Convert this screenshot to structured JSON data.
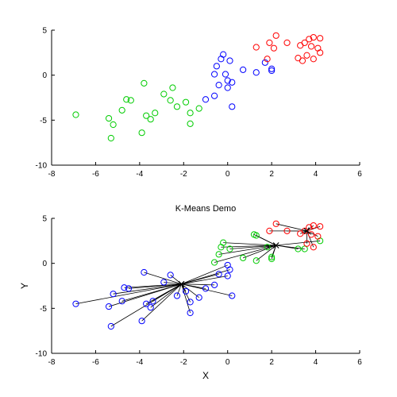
{
  "chart_data": [
    {
      "type": "scatter",
      "title": "",
      "xlabel": "",
      "ylabel": "",
      "xlim": [
        -8,
        6
      ],
      "ylim": [
        -10,
        5
      ],
      "xticks": [
        -8,
        -6,
        -4,
        -2,
        0,
        2,
        4,
        6
      ],
      "yticks": [
        -10,
        -5,
        0,
        5
      ],
      "grid": false,
      "series": [
        {
          "color": "#00cc00",
          "points": [
            [
              -6.9,
              -4.4
            ],
            [
              -5.4,
              -4.8
            ],
            [
              -5.2,
              -5.5
            ],
            [
              -5.3,
              -7.0
            ],
            [
              -4.8,
              -3.9
            ],
            [
              -4.6,
              -2.7
            ],
            [
              -4.4,
              -2.8
            ],
            [
              -3.8,
              -0.9
            ],
            [
              -3.9,
              -6.4
            ],
            [
              -3.7,
              -4.5
            ],
            [
              -3.5,
              -4.9
            ],
            [
              -3.3,
              -4.2
            ],
            [
              -2.9,
              -2.1
            ],
            [
              -2.6,
              -2.8
            ],
            [
              -2.5,
              -1.4
            ],
            [
              -2.3,
              -3.5
            ],
            [
              -1.9,
              -3.0
            ],
            [
              -1.7,
              -4.2
            ],
            [
              -1.7,
              -5.4
            ],
            [
              -1.3,
              -3.7
            ]
          ]
        },
        {
          "color": "#0000ff",
          "points": [
            [
              -1.0,
              -2.7
            ],
            [
              -0.6,
              -2.3
            ],
            [
              -0.6,
              0.1
            ],
            [
              -0.5,
              1.0
            ],
            [
              -0.4,
              -1.1
            ],
            [
              -0.3,
              1.8
            ],
            [
              -0.2,
              2.3
            ],
            [
              -0.1,
              0.1
            ],
            [
              0.0,
              -1.4
            ],
            [
              0.0,
              -0.6
            ],
            [
              0.1,
              1.6
            ],
            [
              0.2,
              -0.8
            ],
            [
              0.2,
              -3.5
            ],
            [
              0.7,
              0.6
            ],
            [
              1.3,
              0.3
            ],
            [
              1.7,
              1.4
            ],
            [
              2.0,
              0.7
            ],
            [
              2.0,
              0.5
            ]
          ]
        },
        {
          "color": "#ff0000",
          "points": [
            [
              1.3,
              3.1
            ],
            [
              1.8,
              1.8
            ],
            [
              1.9,
              3.6
            ],
            [
              2.1,
              3.0
            ],
            [
              2.2,
              4.4
            ],
            [
              2.7,
              3.6
            ],
            [
              3.2,
              1.9
            ],
            [
              3.3,
              3.3
            ],
            [
              3.4,
              1.6
            ],
            [
              3.5,
              3.6
            ],
            [
              3.6,
              2.2
            ],
            [
              3.7,
              4.0
            ],
            [
              3.8,
              3.2
            ],
            [
              3.9,
              4.2
            ],
            [
              3.9,
              1.8
            ],
            [
              4.1,
              3.0
            ],
            [
              4.2,
              4.1
            ],
            [
              4.2,
              2.5
            ]
          ]
        }
      ]
    },
    {
      "type": "scatter",
      "title": "K-Means Demo",
      "xlabel": "X",
      "ylabel": "Y",
      "xlim": [
        -8,
        6
      ],
      "ylim": [
        -10,
        5
      ],
      "xticks": [
        -8,
        -6,
        -4,
        -2,
        0,
        2,
        4,
        6
      ],
      "yticks": [
        -10,
        -5,
        0,
        5
      ],
      "grid": false,
      "centroids": [
        {
          "color": "#0000ff",
          "x": -2.1,
          "y": -2.3
        },
        {
          "color": "#00cc00",
          "x": 2.2,
          "y": 2.0
        },
        {
          "color": "#ff0000",
          "x": 3.6,
          "y": 3.6
        }
      ],
      "series": [
        {
          "color": "#0000ff",
          "centroid": 0,
          "points": [
            [
              -6.9,
              -4.5
            ],
            [
              -5.4,
              -4.8
            ],
            [
              -5.2,
              -3.4
            ],
            [
              -5.3,
              -7.0
            ],
            [
              -4.8,
              -4.2
            ],
            [
              -4.7,
              -2.7
            ],
            [
              -4.5,
              -2.8
            ],
            [
              -3.8,
              -1.0
            ],
            [
              -3.9,
              -6.4
            ],
            [
              -3.7,
              -4.5
            ],
            [
              -3.5,
              -4.9
            ],
            [
              -3.4,
              -4.2
            ],
            [
              -2.9,
              -2.1
            ],
            [
              -2.6,
              -1.3
            ],
            [
              -2.3,
              -3.6
            ],
            [
              -1.9,
              -3.1
            ],
            [
              -1.7,
              -4.3
            ],
            [
              -1.7,
              -5.5
            ],
            [
              -1.3,
              -3.8
            ],
            [
              -1.0,
              -2.8
            ],
            [
              -0.6,
              -2.4
            ],
            [
              -0.4,
              -1.2
            ],
            [
              0.0,
              -1.4
            ],
            [
              0.1,
              -0.7
            ],
            [
              0.2,
              -3.6
            ],
            [
              0.0,
              -0.2
            ]
          ]
        },
        {
          "color": "#00cc00",
          "centroid": 1,
          "points": [
            [
              -0.6,
              0.1
            ],
            [
              -0.4,
              1.0
            ],
            [
              -0.2,
              2.3
            ],
            [
              -0.3,
              1.8
            ],
            [
              0.1,
              1.6
            ],
            [
              0.7,
              0.6
            ],
            [
              1.3,
              0.3
            ],
            [
              1.3,
              3.1
            ],
            [
              1.2,
              3.2
            ],
            [
              1.8,
              1.8
            ],
            [
              2.0,
              0.7
            ],
            [
              2.0,
              0.5
            ],
            [
              3.2,
              1.6
            ],
            [
              3.5,
              1.6
            ],
            [
              4.2,
              2.5
            ]
          ]
        },
        {
          "color": "#ff0000",
          "centroid": 2,
          "points": [
            [
              1.9,
              3.6
            ],
            [
              2.2,
              4.4
            ],
            [
              2.7,
              3.6
            ],
            [
              3.3,
              3.3
            ],
            [
              3.5,
              3.6
            ],
            [
              3.6,
              2.2
            ],
            [
              3.7,
              4.0
            ],
            [
              3.8,
              3.2
            ],
            [
              3.9,
              4.2
            ],
            [
              3.9,
              1.8
            ],
            [
              4.1,
              3.0
            ],
            [
              4.2,
              4.1
            ]
          ]
        }
      ]
    }
  ]
}
